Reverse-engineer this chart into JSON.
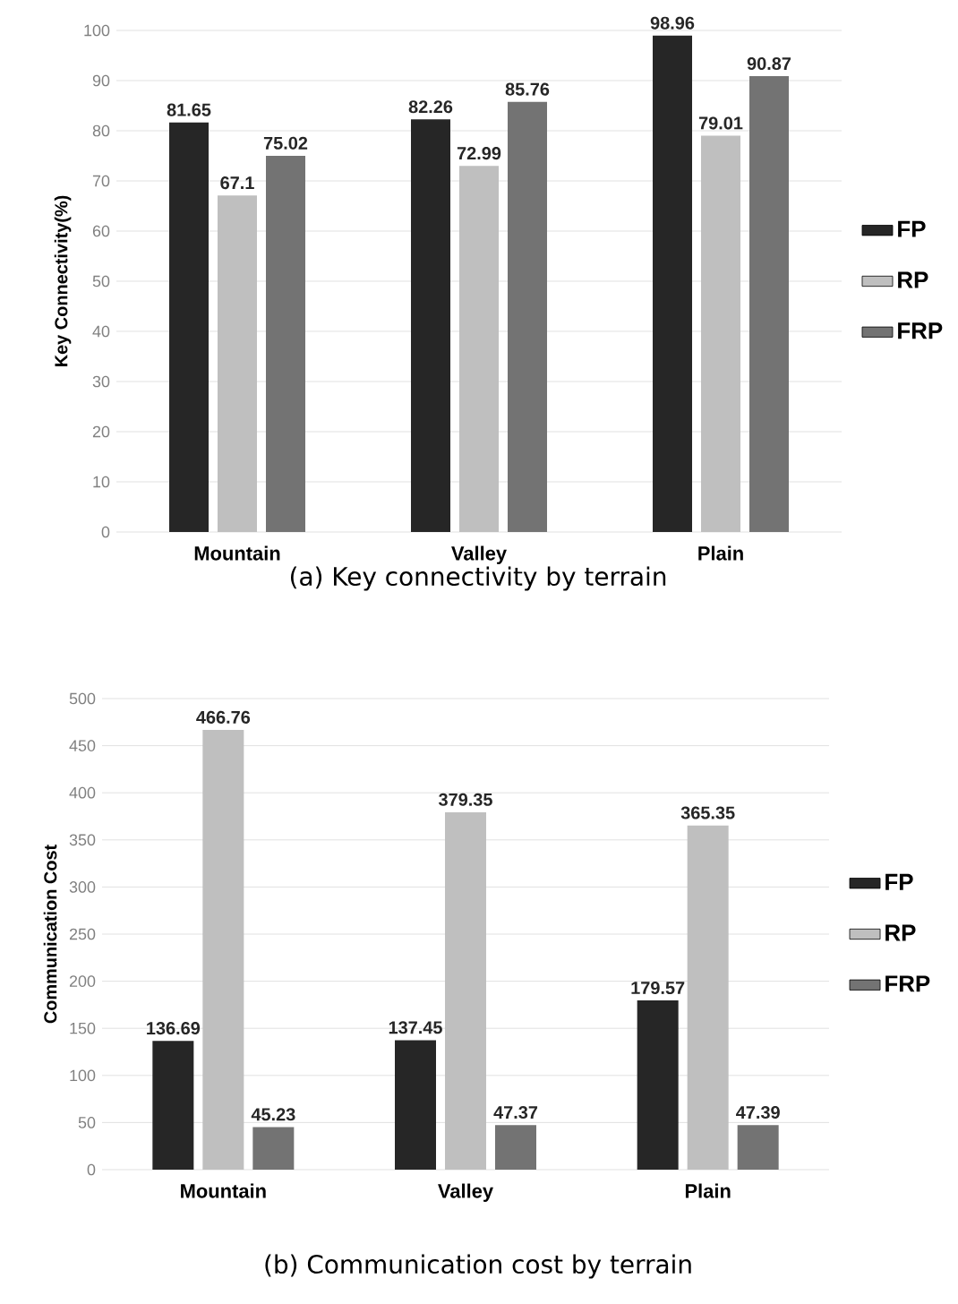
{
  "chart_data": [
    {
      "type": "bar",
      "title": "(a) Key connectivity by terrain",
      "ylabel": "Key Connectivity(%)",
      "categories": [
        "Mountain",
        "Valley",
        "Plain"
      ],
      "ylim": [
        0,
        100
      ],
      "yticks": [
        0,
        10,
        20,
        30,
        40,
        50,
        60,
        70,
        80,
        90,
        100
      ],
      "grid": "y",
      "legend": "right",
      "data_labels": true,
      "series": [
        {
          "name": "FP",
          "color": "#262626",
          "values": [
            81.65,
            82.26,
            98.96
          ]
        },
        {
          "name": "RP",
          "color": "#bfbfbf",
          "values": [
            67.1,
            72.99,
            79.01
          ]
        },
        {
          "name": "FRP",
          "color": "#737373",
          "values": [
            75.02,
            85.76,
            90.87
          ]
        }
      ]
    },
    {
      "type": "bar",
      "title": "(b) Communication cost by terrain",
      "ylabel": "Communication Cost",
      "categories": [
        "Mountain",
        "Valley",
        "Plain"
      ],
      "ylim": [
        0,
        500
      ],
      "yticks": [
        0,
        50,
        100,
        150,
        200,
        250,
        300,
        350,
        400,
        450,
        500
      ],
      "grid": "y",
      "legend": "right",
      "data_labels": true,
      "series": [
        {
          "name": "FP",
          "color": "#262626",
          "values": [
            136.69,
            137.45,
            179.57
          ]
        },
        {
          "name": "RP",
          "color": "#bfbfbf",
          "values": [
            466.76,
            379.35,
            365.35
          ]
        },
        {
          "name": "FRP",
          "color": "#737373",
          "values": [
            45.23,
            47.37,
            47.39
          ]
        }
      ]
    }
  ]
}
